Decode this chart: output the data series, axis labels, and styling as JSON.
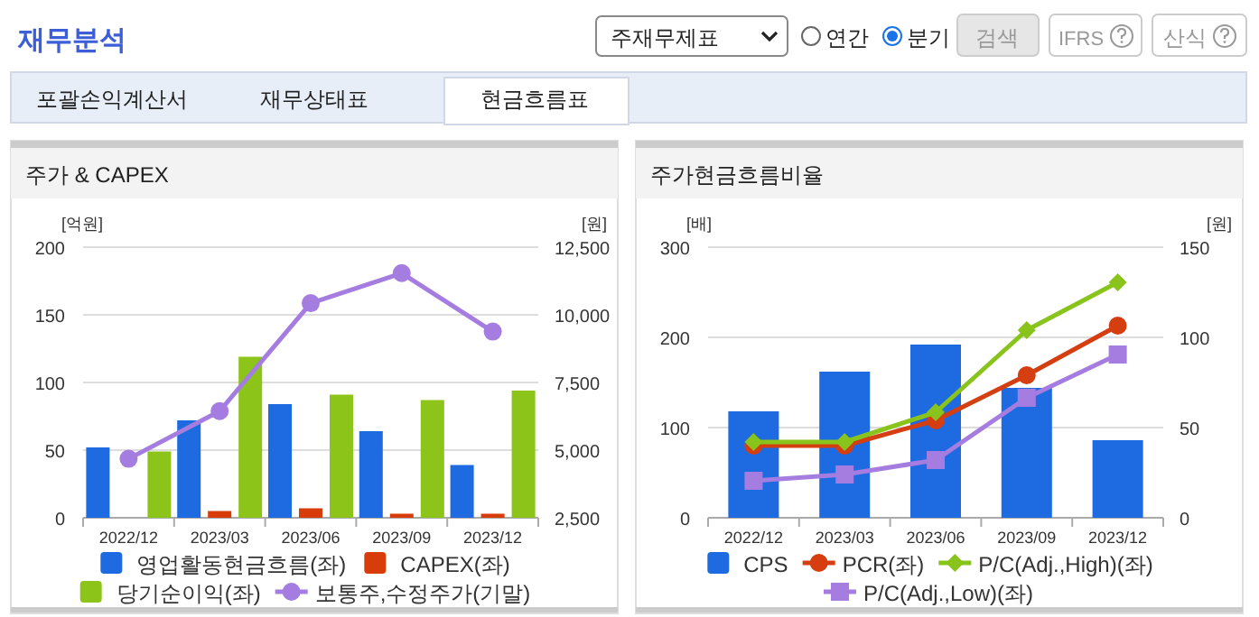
{
  "chart_data": [
    {
      "type": "other",
      "title": "재무분석",
      "annotations": [
        "주재무제표",
        "연간",
        "분기",
        "검색",
        "IFRS",
        "산식",
        "포괄손익계산서",
        "재무상태표",
        "현금흐름표"
      ]
    },
    {
      "type": "bar",
      "title": "주가 & CAPEX",
      "categories": [
        "2022/12",
        "2023/03",
        "2023/06",
        "2023/09",
        "2023/12"
      ],
      "ylabel": "[억원]",
      "y2label": "[원]",
      "ylim": [
        0,
        200
      ],
      "yticks": [
        0,
        50,
        100,
        150,
        200
      ],
      "y2lim": [
        2500,
        12500
      ],
      "y2ticks": [
        {
          "value": 2500,
          "label": "2,500"
        },
        {
          "value": 5000,
          "label": "5,000"
        },
        {
          "value": 7500,
          "label": "7,500"
        },
        {
          "value": 10000,
          "label": "10,000"
        },
        {
          "value": 12500,
          "label": "12,500"
        }
      ],
      "grid": "y",
      "legend": "bottom",
      "series": [
        {
          "name": "영업활동현금흐름(좌)",
          "color": "#1e6ae0",
          "values": [
            52,
            72,
            84,
            64,
            39
          ]
        },
        {
          "name": "CAPEX(좌)",
          "color": "#d83c0a",
          "values": [
            0,
            5,
            7,
            3,
            3
          ]
        },
        {
          "name": "당기순이익(좌)",
          "color": "#8cc41a",
          "values": [
            49,
            119,
            91,
            87,
            94
          ]
        },
        {
          "name": "보통주,수정주가(기말)",
          "color": "#a57de0",
          "type": "line",
          "axis": "y2",
          "marker": "circle",
          "values": [
            4680,
            6440,
            10430,
            11540,
            9380
          ]
        }
      ]
    },
    {
      "type": "bar",
      "title": "주가현금흐름비율",
      "categories": [
        "2022/12",
        "2023/03",
        "2023/06",
        "2023/09",
        "2023/12"
      ],
      "ylabel": "[배]",
      "y2label": "[원]",
      "ylim": [
        0,
        300
      ],
      "yticks": [
        0,
        100,
        200,
        300
      ],
      "y2lim": [
        0,
        150
      ],
      "y2ticks": [
        0,
        50,
        100,
        150
      ],
      "grid": "y",
      "legend": "bottom",
      "series": [
        {
          "name": "CPS",
          "color": "#1e6ae0",
          "axis": "y2",
          "values": [
            59,
            81,
            96,
            72,
            43
          ]
        },
        {
          "name": "PCR(좌)",
          "color": "#d53e10",
          "type": "line",
          "marker": "circle",
          "values": [
            80,
            80,
            108,
            158,
            213
          ]
        },
        {
          "name": "P/C(Adj.,High)(좌)",
          "color": "#88c41c",
          "type": "line",
          "marker": "diamond",
          "values": [
            84,
            84,
            117,
            208,
            261
          ]
        },
        {
          "name": "P/C(Adj.,Low)(좌)",
          "color": "#a57de0",
          "type": "line",
          "marker": "square",
          "values": [
            41,
            48,
            64,
            133,
            181
          ]
        }
      ]
    }
  ]
}
